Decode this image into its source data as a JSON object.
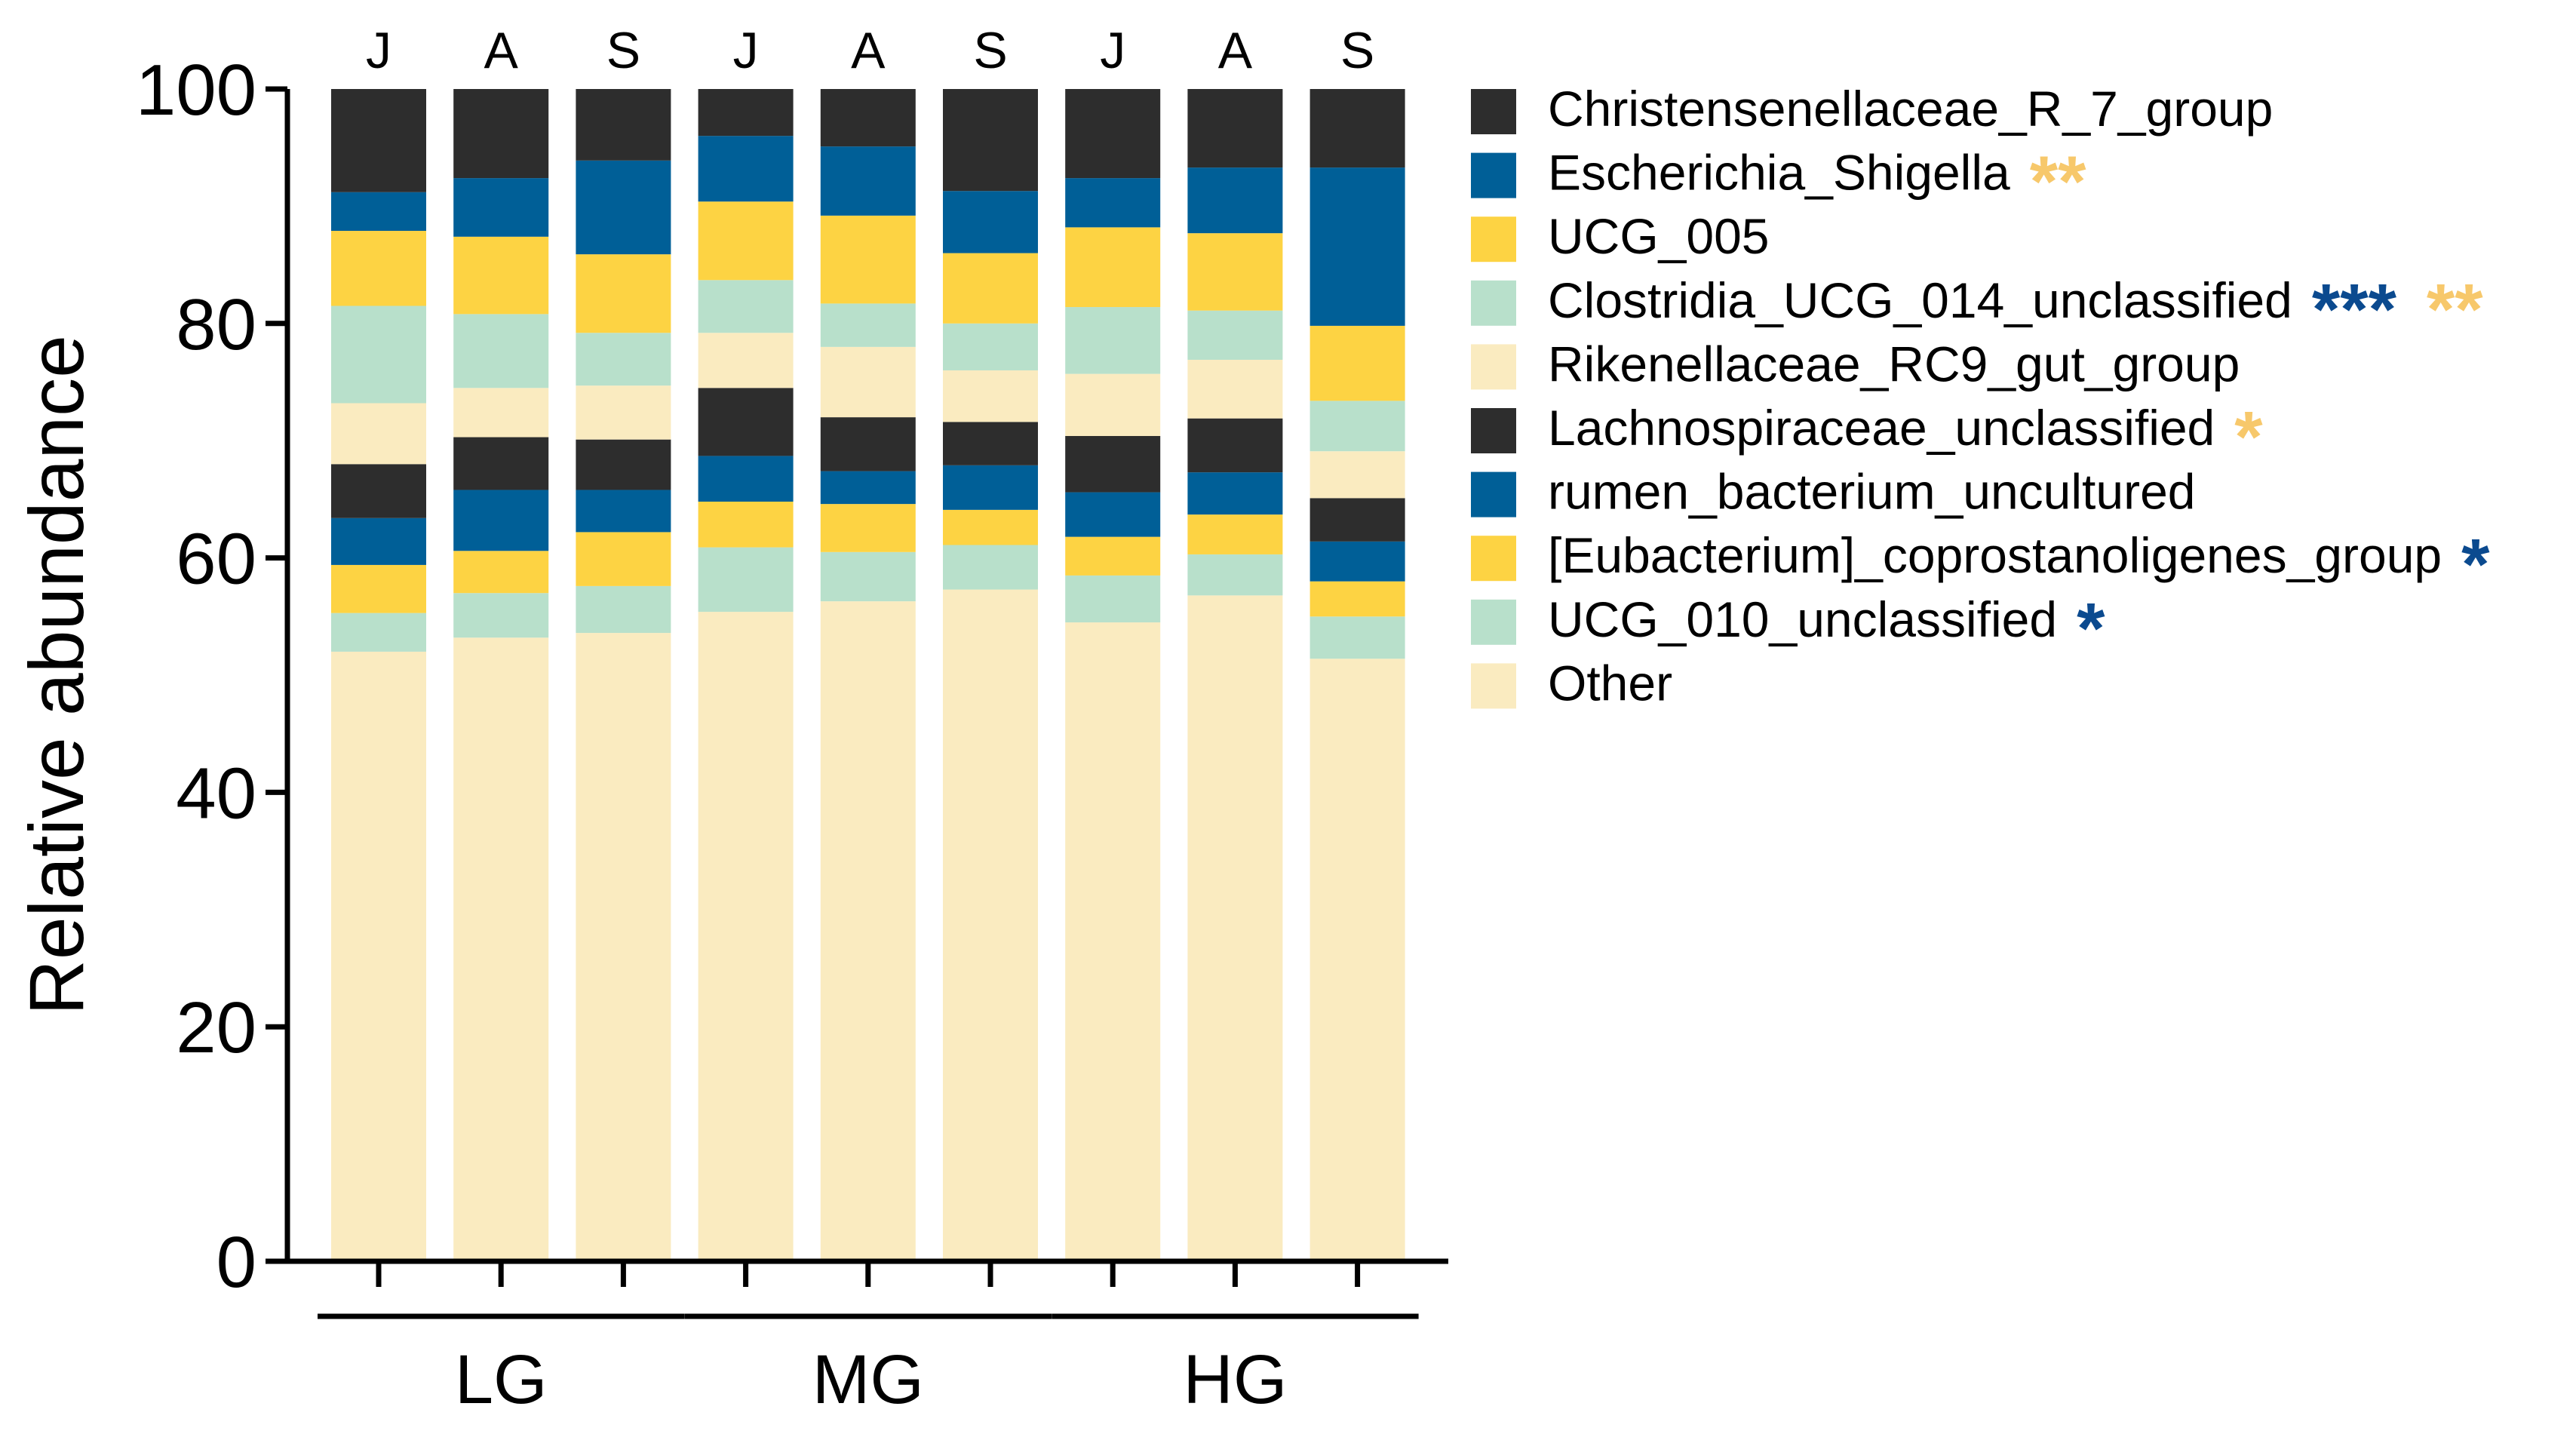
{
  "chart_data": {
    "type": "bar",
    "stacked": true,
    "ylabel": "Relative abundance",
    "xlabel": "",
    "ylim": [
      0,
      100
    ],
    "yticks": [
      0,
      20,
      40,
      60,
      80,
      100
    ],
    "categories": [
      "J",
      "A",
      "S",
      "J",
      "A",
      "S",
      "J",
      "A",
      "S"
    ],
    "groups": [
      {
        "label": "LG",
        "members": [
          0,
          1,
          2
        ]
      },
      {
        "label": "MG",
        "members": [
          3,
          4,
          5
        ]
      },
      {
        "label": "HG",
        "members": [
          6,
          7,
          8
        ]
      }
    ],
    "legend_position": "right",
    "series": [
      {
        "name": "Other",
        "color": "#faebc0",
        "values": [
          52.0,
          53.2,
          53.6,
          55.4,
          56.3,
          57.3,
          54.5,
          56.8,
          51.4
        ],
        "annotations": []
      },
      {
        "name": "UCG_010_unclassified",
        "color": "#b8e0cb",
        "values": [
          3.3,
          3.8,
          4.0,
          5.5,
          4.2,
          3.8,
          4.0,
          3.5,
          3.6
        ],
        "annotations": [
          {
            "text": "*",
            "color": "#0b4a8f"
          }
        ]
      },
      {
        "name": "[Eubacterium]_coprostanoligenes_group",
        "color": "#fdd343",
        "values": [
          4.1,
          3.6,
          4.6,
          3.9,
          4.1,
          3.0,
          3.3,
          3.4,
          3.0
        ],
        "annotations": [
          {
            "text": "*",
            "color": "#0b4a8f"
          }
        ]
      },
      {
        "name": "rumen_bacterium_uncultured",
        "color": "#005f97",
        "values": [
          4.0,
          5.2,
          3.6,
          3.9,
          2.8,
          3.8,
          3.8,
          3.6,
          3.4
        ],
        "annotations": []
      },
      {
        "name": "Lachnospiraceae_unclassified",
        "color": "#2d2d2d",
        "values": [
          4.6,
          4.5,
          4.3,
          5.8,
          4.6,
          3.7,
          4.8,
          4.6,
          3.7
        ],
        "annotations": [
          {
            "text": "*",
            "color": "#f7c86b"
          }
        ]
      },
      {
        "name": "Rikenellaceae_RC9_gut_group",
        "color": "#faebc0",
        "values": [
          5.2,
          4.2,
          4.6,
          4.7,
          6.0,
          4.4,
          5.3,
          5.0,
          4.0
        ],
        "annotations": []
      },
      {
        "name": "Clostridia_UCG_014_unclassified",
        "color": "#b8e0cb",
        "values": [
          8.3,
          6.3,
          4.5,
          4.5,
          3.7,
          4.0,
          5.7,
          4.2,
          4.3
        ],
        "annotations": [
          {
            "text": "***",
            "color": "#0b4a8f"
          },
          {
            "text": "**",
            "color": "#f7c86b"
          }
        ]
      },
      {
        "name": "UCG_005",
        "color": "#fdd343",
        "values": [
          6.4,
          6.6,
          6.7,
          6.7,
          7.5,
          6.0,
          6.8,
          6.6,
          6.4
        ],
        "annotations": []
      },
      {
        "name": "Escherichia_Shigella",
        "color": "#005f97",
        "values": [
          3.3,
          5.0,
          8.0,
          5.6,
          5.9,
          5.3,
          4.2,
          5.6,
          13.5
        ],
        "annotations": [
          {
            "text": "**",
            "color": "#f7c86b"
          }
        ]
      },
      {
        "name": "Christensenellaceae_R_7_group",
        "color": "#2d2d2d",
        "values": [
          8.8,
          7.6,
          6.1,
          4.0,
          4.9,
          8.7,
          7.6,
          6.7,
          6.7
        ],
        "annotations": []
      }
    ]
  }
}
